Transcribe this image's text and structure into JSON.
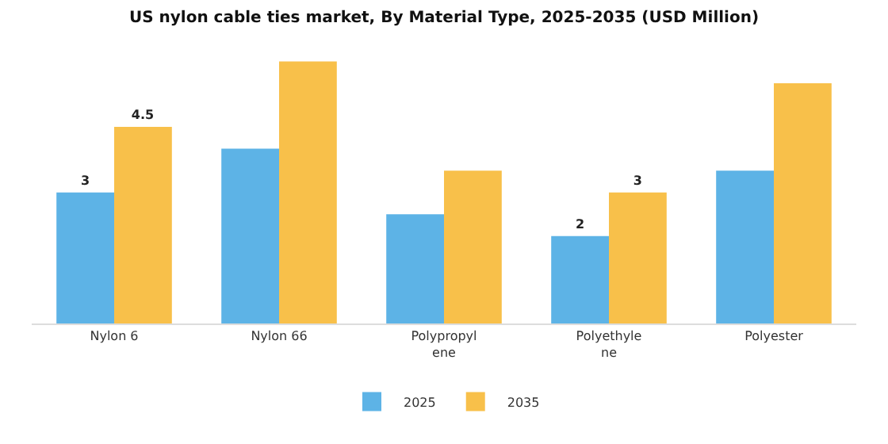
{
  "chart_data": {
    "type": "bar",
    "title": "US nylon cable ties market, By Material Type, 2025-2035 (USD Million)",
    "categories": [
      "Nylon 6",
      "Nylon 66",
      "Polypropyl\nene",
      "Polyethyle\nne",
      "Polyester"
    ],
    "series": [
      {
        "name": "2025",
        "color": "#5db3e6",
        "values": [
          3,
          4,
          2.5,
          2,
          3.5
        ],
        "value_labels": [
          "3",
          null,
          null,
          "2",
          null
        ]
      },
      {
        "name": "2035",
        "color": "#f8c04a",
        "values": [
          4.5,
          6,
          3.5,
          3,
          5.5
        ],
        "value_labels": [
          "4.5",
          null,
          null,
          "3",
          null
        ]
      }
    ],
    "legend": "bottom",
    "tick_labels": "x"
  }
}
